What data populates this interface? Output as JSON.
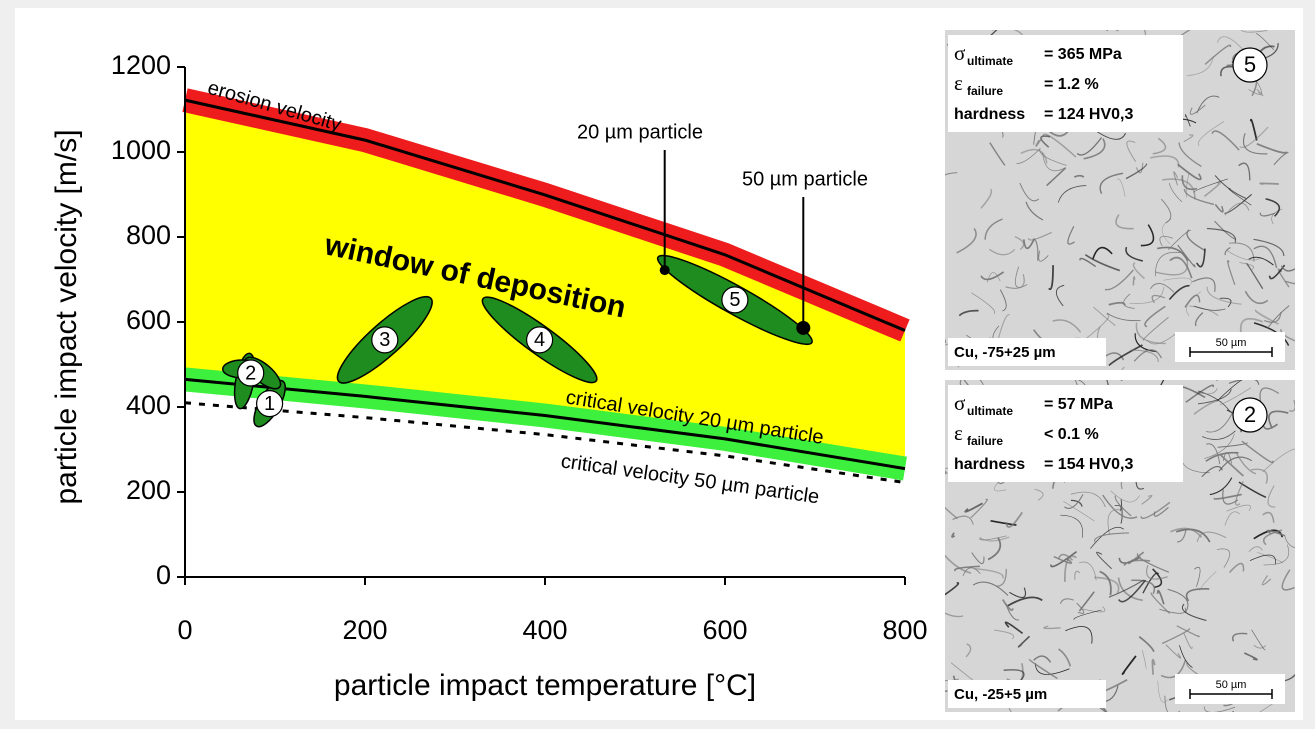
{
  "chart_data": {
    "type": "line",
    "xlabel": "particle impact temperature [°C]",
    "ylabel": "particle impact velocity [m/s]",
    "xlim": [
      0,
      800
    ],
    "ylim": [
      0,
      1200
    ],
    "xticks": [
      0,
      200,
      400,
      600,
      800
    ],
    "yticks": [
      0,
      200,
      400,
      600,
      800,
      1000,
      1200
    ],
    "grid": false,
    "window": {
      "label": "window of deposition",
      "color": "#ffff00"
    },
    "series": [
      {
        "name": "erosion velocity",
        "color": "#000000",
        "band_color": "#ee1c1c",
        "dash": false,
        "x": [
          0,
          200,
          400,
          600,
          800
        ],
        "values": [
          1122,
          1028,
          899,
          758,
          580
        ]
      },
      {
        "name": "critical velocity 20 µm particle",
        "color": "#000000",
        "band_color": "#3df03d",
        "dash": false,
        "x": [
          0,
          200,
          400,
          600,
          800
        ],
        "values": [
          465,
          425,
          380,
          325,
          255
        ]
      },
      {
        "name": "critical velocity 50 µm particle",
        "color": "#000000",
        "dash": true,
        "x": [
          0,
          200,
          400,
          600,
          800
        ],
        "values": [
          410,
          375,
          335,
          285,
          222
        ]
      }
    ],
    "particles": [
      {
        "name": "20 µm particle",
        "x": 533,
        "y": 722
      },
      {
        "name": "50 µm particle",
        "x": 687,
        "y": 586
      }
    ],
    "regions": [
      {
        "label": "1",
        "x": 94,
        "y": 408
      },
      {
        "label": "2",
        "x": 73,
        "y": 480
      },
      {
        "label": "3",
        "x": 222,
        "y": 558
      },
      {
        "label": "4",
        "x": 394,
        "y": 558
      },
      {
        "label": "5",
        "x": 611,
        "y": 652
      }
    ],
    "region_color": "#1e8c1e"
  },
  "panels": [
    {
      "number": "5",
      "rows": [
        {
          "symbol": "σ",
          "subscript": "ultimate",
          "value": "= 365 MPa"
        },
        {
          "symbol": "ε",
          "subscript": "failure",
          "value": "= 1.2 %"
        },
        {
          "label": "hardness",
          "value": "= 124 HV0,3"
        }
      ],
      "caption": "Cu, -75+25 µm",
      "scale": "50 µm"
    },
    {
      "number": "2",
      "rows": [
        {
          "symbol": "σ",
          "subscript": "ultimate",
          "value": "= 57 MPa"
        },
        {
          "symbol": "ε",
          "subscript": "failure",
          "value": "< 0.1 %"
        },
        {
          "label": "hardness",
          "value": "= 154 HV0,3"
        }
      ],
      "caption": "Cu, -25+5 µm",
      "scale": "50 µm"
    }
  ]
}
